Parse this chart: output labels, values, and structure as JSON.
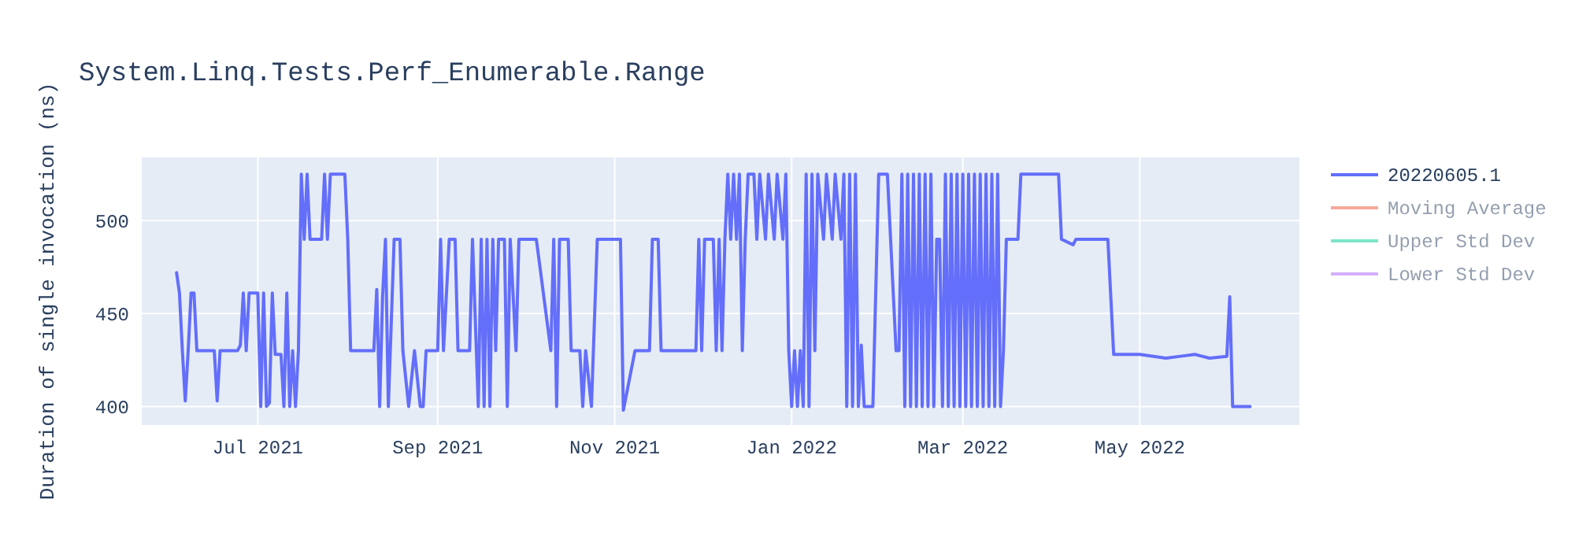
{
  "chart_data": {
    "type": "line",
    "title": "System.Linq.Tests.Perf_Enumerable.Range",
    "ylabel": "Duration of single invocation (ns)",
    "xlim": [
      "2021-05-22",
      "2022-06-25"
    ],
    "xticks": [
      {
        "value": "2021-07-01",
        "label": "Jul 2021"
      },
      {
        "value": "2021-09-01",
        "label": "Sep 2021"
      },
      {
        "value": "2021-11-01",
        "label": "Nov 2021"
      },
      {
        "value": "2022-01-01",
        "label": "Jan 2022"
      },
      {
        "value": "2022-03-01",
        "label": "Mar 2022"
      },
      {
        "value": "2022-05-01",
        "label": "May 2022"
      }
    ],
    "ylim": [
      390,
      534
    ],
    "yticks": [
      400,
      450,
      500
    ],
    "grid": true,
    "legend": "top right",
    "series": [
      {
        "name": "20220605.1",
        "color": "#636efa",
        "x": [
          "2021-06-03",
          "2021-06-04",
          "2021-06-05",
          "2021-06-06",
          "2021-06-07",
          "2021-06-08",
          "2021-06-09",
          "2021-06-10",
          "2021-06-16",
          "2021-06-17",
          "2021-06-18",
          "2021-06-24",
          "2021-06-25",
          "2021-06-26",
          "2021-06-27",
          "2021-06-28",
          "2021-07-01",
          "2021-07-02",
          "2021-07-03",
          "2021-07-04",
          "2021-07-05",
          "2021-07-06",
          "2021-07-07",
          "2021-07-09",
          "2021-07-10",
          "2021-07-11",
          "2021-07-12",
          "2021-07-13",
          "2021-07-14",
          "2021-07-15",
          "2021-07-16",
          "2021-07-17",
          "2021-07-18",
          "2021-07-19",
          "2021-07-23",
          "2021-07-24",
          "2021-07-25",
          "2021-07-26",
          "2021-07-31",
          "2021-08-01",
          "2021-08-02",
          "2021-08-10",
          "2021-08-11",
          "2021-08-12",
          "2021-08-13",
          "2021-08-14",
          "2021-08-15",
          "2021-08-17",
          "2021-08-19",
          "2021-08-20",
          "2021-08-22",
          "2021-08-24",
          "2021-08-26",
          "2021-08-27",
          "2021-08-28",
          "2021-09-01",
          "2021-09-02",
          "2021-09-03",
          "2021-09-05",
          "2021-09-07",
          "2021-09-08",
          "2021-09-12",
          "2021-09-13",
          "2021-09-15",
          "2021-09-16",
          "2021-09-17",
          "2021-09-18",
          "2021-09-19",
          "2021-09-20",
          "2021-09-21",
          "2021-09-22",
          "2021-09-24",
          "2021-09-25",
          "2021-09-26",
          "2021-09-28",
          "2021-09-29",
          "2021-10-05",
          "2021-10-10",
          "2021-10-11",
          "2021-10-12",
          "2021-10-13",
          "2021-10-16",
          "2021-10-17",
          "2021-10-20",
          "2021-10-21",
          "2021-10-22",
          "2021-10-24",
          "2021-10-26",
          "2021-11-03",
          "2021-11-04",
          "2021-11-08",
          "2021-11-13",
          "2021-11-14",
          "2021-11-16",
          "2021-11-17",
          "2021-11-29",
          "2021-11-30",
          "2021-12-01",
          "2021-12-02",
          "2021-12-05",
          "2021-12-06",
          "2021-12-07",
          "2021-12-08",
          "2021-12-09",
          "2021-12-10",
          "2021-12-11",
          "2021-12-12",
          "2021-12-13",
          "2021-12-14",
          "2021-12-15",
          "2021-12-16",
          "2021-12-17",
          "2021-12-19",
          "2021-12-20",
          "2021-12-21",
          "2021-12-23",
          "2021-12-24",
          "2021-12-26",
          "2021-12-27",
          "2021-12-29",
          "2021-12-30",
          "2021-12-31",
          "2022-01-01",
          "2022-01-02",
          "2022-01-03",
          "2022-01-04",
          "2022-01-05",
          "2022-01-06",
          "2022-01-07",
          "2022-01-08",
          "2022-01-09",
          "2022-01-10",
          "2022-01-12",
          "2022-01-13",
          "2022-01-15",
          "2022-01-16",
          "2022-01-18",
          "2022-01-19",
          "2022-01-20",
          "2022-01-21",
          "2022-01-22",
          "2022-01-23",
          "2022-01-24",
          "2022-01-25",
          "2022-01-26",
          "2022-01-29",
          "2022-01-31",
          "2022-02-03",
          "2022-02-06",
          "2022-02-07",
          "2022-02-08",
          "2022-02-09",
          "2022-02-10",
          "2022-02-11",
          "2022-02-12",
          "2022-02-13",
          "2022-02-14",
          "2022-02-15",
          "2022-02-16",
          "2022-02-17",
          "2022-02-18",
          "2022-02-19",
          "2022-02-20",
          "2022-02-21",
          "2022-02-22",
          "2022-02-23",
          "2022-02-24",
          "2022-02-25",
          "2022-02-26",
          "2022-02-27",
          "2022-02-28",
          "2022-03-01",
          "2022-03-02",
          "2022-03-03",
          "2022-03-04",
          "2022-03-05",
          "2022-03-06",
          "2022-03-07",
          "2022-03-08",
          "2022-03-09",
          "2022-03-10",
          "2022-03-11",
          "2022-03-12",
          "2022-03-13",
          "2022-03-14",
          "2022-03-15",
          "2022-03-16",
          "2022-03-20",
          "2022-03-21",
          "2022-04-03",
          "2022-04-04",
          "2022-04-08",
          "2022-04-09",
          "2022-04-20",
          "2022-04-21",
          "2022-04-22",
          "2022-05-01",
          "2022-05-10",
          "2022-05-15",
          "2022-05-20",
          "2022-05-25",
          "2022-05-31",
          "2022-06-01",
          "2022-06-02",
          "2022-06-08"
        ],
        "values": [
          472,
          461,
          430,
          403,
          430,
          461,
          461,
          430,
          430,
          403,
          430,
          430,
          433,
          461,
          430,
          461,
          461,
          400,
          461,
          400,
          402,
          461,
          428,
          428,
          400,
          461,
          400,
          430,
          400,
          430,
          525,
          490,
          525,
          490,
          490,
          525,
          490,
          525,
          525,
          490,
          430,
          430,
          463,
          400,
          459,
          490,
          400,
          490,
          490,
          430,
          400,
          430,
          400,
          400,
          430,
          430,
          490,
          430,
          490,
          490,
          430,
          430,
          490,
          400,
          490,
          400,
          490,
          400,
          490,
          430,
          490,
          490,
          400,
          490,
          430,
          490,
          490,
          430,
          490,
          400,
          490,
          490,
          430,
          430,
          400,
          430,
          400,
          490,
          490,
          398,
          430,
          430,
          490,
          490,
          430,
          430,
          490,
          430,
          490,
          490,
          430,
          490,
          430,
          490,
          525,
          490,
          525,
          490,
          525,
          430,
          490,
          525,
          525,
          490,
          525,
          490,
          525,
          490,
          525,
          490,
          525,
          430,
          400,
          430,
          400,
          430,
          400,
          525,
          400,
          525,
          430,
          525,
          490,
          525,
          490,
          525,
          490,
          525,
          400,
          525,
          400,
          525,
          400,
          433,
          400,
          400,
          525,
          525,
          430,
          430,
          525,
          400,
          525,
          400,
          525,
          400,
          525,
          400,
          525,
          400,
          525,
          400,
          490,
          490,
          400,
          525,
          400,
          525,
          400,
          525,
          400,
          525,
          400,
          525,
          400,
          525,
          400,
          525,
          400,
          525,
          400,
          525,
          400,
          525,
          400,
          430,
          490,
          490,
          525,
          525,
          490,
          487,
          490,
          490,
          459,
          428,
          428,
          426,
          427,
          428,
          426,
          427,
          459,
          400,
          400
        ]
      },
      {
        "name": "Moving Average",
        "color": "#ef553b"
      },
      {
        "name": "Upper Std Dev",
        "color": "#00cc96"
      },
      {
        "name": "Lower Std Dev",
        "color": "#ab63fa"
      }
    ]
  }
}
